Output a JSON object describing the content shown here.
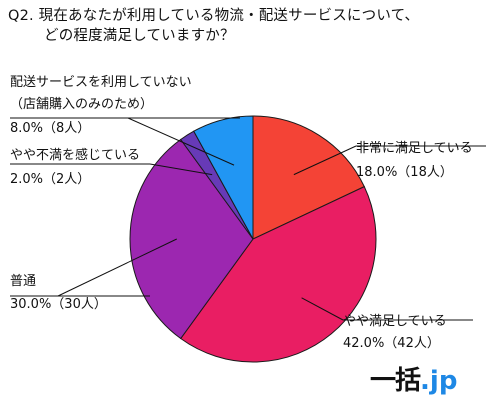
{
  "title": {
    "line1": "Q2. 現在あなたが利用している物流・配送サービスについて、",
    "line2": "どの程度満足していますか？"
  },
  "logo": {
    "main": "一括",
    "dot": ".",
    "tld": "jp"
  },
  "chart_data": {
    "type": "pie",
    "title": "Q2. 現在あなたが利用している物流・配送サービスについて、どの程度満足していますか？",
    "start_angle_deg": 0,
    "direction": "clockwise",
    "slices": [
      {
        "label": "非常に満足している",
        "value": 18.0,
        "count": 18,
        "value_text": "18.0%（18人）",
        "color": "#f44336"
      },
      {
        "label": "やや満足している",
        "value": 42.0,
        "count": 42,
        "value_text": "42.0%（42人）",
        "color": "#e91e63"
      },
      {
        "label": "普通",
        "value": 30.0,
        "count": 30,
        "value_text": "30.0%（30人）",
        "color": "#9c27b0"
      },
      {
        "label": "やや不満を感じている",
        "value": 2.0,
        "count": 2,
        "value_text": "2.0%（2人）",
        "color": "#673ab7"
      },
      {
        "label": "配送サービスを利用していない",
        "label2": "（店舗購入のみのため）",
        "value": 8.0,
        "count": 8,
        "value_text": "8.0%（8人）",
        "color": "#2196f3"
      }
    ]
  }
}
